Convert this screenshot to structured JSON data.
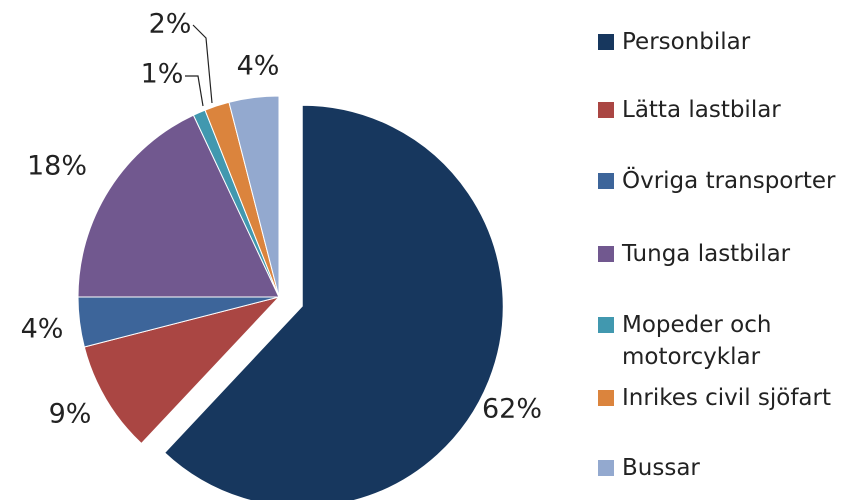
{
  "chart_data": {
    "type": "pie",
    "categories": [
      "Personbilar",
      "Lätta lastbilar",
      "Övriga transporter",
      "Tunga lastbilar",
      "Mopeder och motorcyklar",
      "Inrikes civil sjöfart",
      "Bussar"
    ],
    "values": [
      62,
      9,
      4,
      18,
      1,
      2,
      4
    ],
    "value_labels": [
      "62%",
      "9%",
      "4%",
      "18%",
      "1%",
      "2%",
      "4%"
    ],
    "colors": [
      "#17375e",
      "#aa4643",
      "#3d659a",
      "#71588f",
      "#4198af",
      "#db843d",
      "#93a9cf"
    ],
    "legend": "right"
  }
}
